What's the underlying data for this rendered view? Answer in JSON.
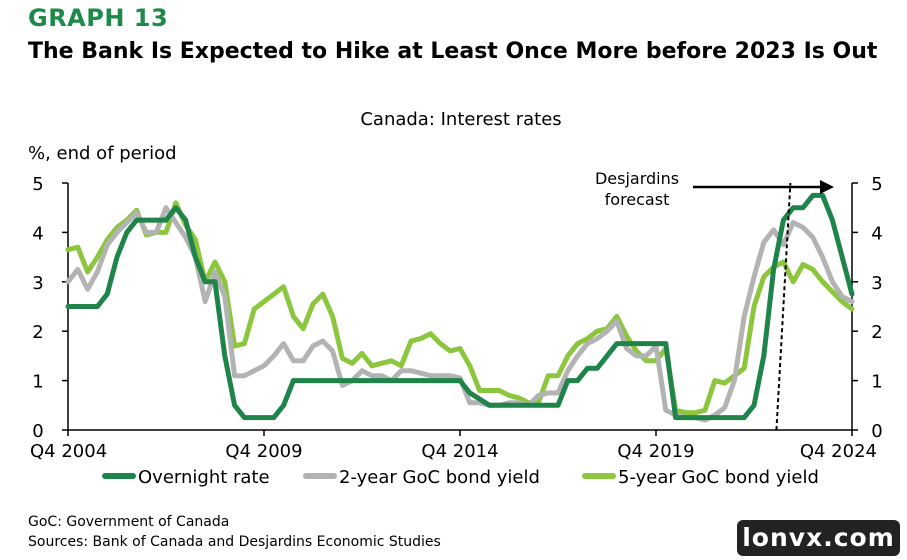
{
  "header": {
    "graph_label": "GRAPH 13",
    "title": "The Bank Is Expected to Hike at Least Once More before 2023 Is Out"
  },
  "footnotes": {
    "line1": "GoC: Government of Canada",
    "line2": "Sources: Bank of Canada and Desjardins Economic Studies"
  },
  "watermark": "lonvx.com",
  "colors": {
    "overnight": "#1e8449",
    "two_year": "#b3b3b3",
    "five_year": "#8cc63f"
  },
  "chart_data": {
    "type": "line",
    "title": "Canada: Interest rates",
    "ylabel": "%, end of period",
    "ylim": [
      0,
      5
    ],
    "yticks": [
      "0",
      "1",
      "2",
      "3",
      "4",
      "5"
    ],
    "xlim": [
      2004.75,
      2024.75
    ],
    "xticks": [
      {
        "x": 2004.75,
        "label": "Q4 2004"
      },
      {
        "x": 2009.75,
        "label": "Q4 2009"
      },
      {
        "x": 2014.75,
        "label": "Q4 2014"
      },
      {
        "x": 2019.75,
        "label": "Q4 2019"
      },
      {
        "x": 2024.75,
        "label": "Q4 2024"
      }
    ],
    "annotation": {
      "text_line1": "Desjardins",
      "text_line2": "forecast",
      "x": 2023.0
    },
    "series": [
      {
        "name": "Overnight rate",
        "key": "overnight",
        "points": [
          [
            2004.75,
            2.5
          ],
          [
            2005.25,
            2.5
          ],
          [
            2005.5,
            2.5
          ],
          [
            2005.75,
            2.75
          ],
          [
            2006.0,
            3.5
          ],
          [
            2006.25,
            4.0
          ],
          [
            2006.5,
            4.25
          ],
          [
            2006.75,
            4.25
          ],
          [
            2007.0,
            4.25
          ],
          [
            2007.25,
            4.25
          ],
          [
            2007.5,
            4.5
          ],
          [
            2007.75,
            4.25
          ],
          [
            2008.0,
            3.5
          ],
          [
            2008.25,
            3.0
          ],
          [
            2008.5,
            3.0
          ],
          [
            2008.75,
            1.5
          ],
          [
            2009.0,
            0.5
          ],
          [
            2009.25,
            0.25
          ],
          [
            2009.5,
            0.25
          ],
          [
            2009.75,
            0.25
          ],
          [
            2010.0,
            0.25
          ],
          [
            2010.25,
            0.5
          ],
          [
            2010.5,
            1.0
          ],
          [
            2010.75,
            1.0
          ],
          [
            2014.75,
            1.0
          ],
          [
            2015.0,
            0.75
          ],
          [
            2015.5,
            0.5
          ],
          [
            2016.0,
            0.5
          ],
          [
            2017.25,
            0.5
          ],
          [
            2017.5,
            1.0
          ],
          [
            2017.75,
            1.0
          ],
          [
            2018.0,
            1.25
          ],
          [
            2018.25,
            1.25
          ],
          [
            2018.5,
            1.5
          ],
          [
            2018.75,
            1.75
          ],
          [
            2020.0,
            1.75
          ],
          [
            2020.25,
            0.25
          ],
          [
            2022.0,
            0.25
          ],
          [
            2022.25,
            0.5
          ],
          [
            2022.5,
            1.5
          ],
          [
            2022.75,
            3.25
          ],
          [
            2023.0,
            4.25
          ],
          [
            2023.25,
            4.5
          ],
          [
            2023.5,
            4.5
          ],
          [
            2023.75,
            4.75
          ],
          [
            2024.0,
            4.75
          ],
          [
            2024.25,
            4.25
          ],
          [
            2024.5,
            3.5
          ],
          [
            2024.75,
            2.75
          ]
        ]
      },
      {
        "name": "2-year GoC bond yield",
        "key": "two_year",
        "points": [
          [
            2004.75,
            3.0
          ],
          [
            2005.0,
            3.25
          ],
          [
            2005.25,
            2.85
          ],
          [
            2005.5,
            3.2
          ],
          [
            2005.75,
            3.75
          ],
          [
            2006.0,
            4.0
          ],
          [
            2006.25,
            4.2
          ],
          [
            2006.5,
            4.4
          ],
          [
            2006.75,
            4.0
          ],
          [
            2007.0,
            4.0
          ],
          [
            2007.25,
            4.5
          ],
          [
            2007.5,
            4.2
          ],
          [
            2007.75,
            3.9
          ],
          [
            2008.0,
            3.5
          ],
          [
            2008.25,
            2.6
          ],
          [
            2008.5,
            3.2
          ],
          [
            2008.75,
            2.7
          ],
          [
            2009.0,
            1.1
          ],
          [
            2009.25,
            1.1
          ],
          [
            2009.5,
            1.2
          ],
          [
            2009.75,
            1.3
          ],
          [
            2010.0,
            1.5
          ],
          [
            2010.25,
            1.75
          ],
          [
            2010.5,
            1.4
          ],
          [
            2010.75,
            1.4
          ],
          [
            2011.0,
            1.7
          ],
          [
            2011.25,
            1.8
          ],
          [
            2011.5,
            1.6
          ],
          [
            2011.75,
            0.9
          ],
          [
            2012.0,
            1.0
          ],
          [
            2012.25,
            1.2
          ],
          [
            2012.5,
            1.1
          ],
          [
            2012.75,
            1.1
          ],
          [
            2013.0,
            1.0
          ],
          [
            2013.25,
            1.2
          ],
          [
            2013.5,
            1.2
          ],
          [
            2013.75,
            1.15
          ],
          [
            2014.0,
            1.1
          ],
          [
            2014.25,
            1.1
          ],
          [
            2014.5,
            1.1
          ],
          [
            2014.75,
            1.05
          ],
          [
            2015.0,
            0.55
          ],
          [
            2015.25,
            0.55
          ],
          [
            2015.5,
            0.5
          ],
          [
            2015.75,
            0.5
          ],
          [
            2016.0,
            0.55
          ],
          [
            2016.25,
            0.55
          ],
          [
            2016.5,
            0.5
          ],
          [
            2016.75,
            0.7
          ],
          [
            2017.0,
            0.75
          ],
          [
            2017.25,
            0.75
          ],
          [
            2017.5,
            1.2
          ],
          [
            2017.75,
            1.5
          ],
          [
            2018.0,
            1.75
          ],
          [
            2018.25,
            1.85
          ],
          [
            2018.5,
            2.0
          ],
          [
            2018.75,
            2.2
          ],
          [
            2019.0,
            1.65
          ],
          [
            2019.25,
            1.5
          ],
          [
            2019.5,
            1.5
          ],
          [
            2019.75,
            1.7
          ],
          [
            2020.0,
            0.4
          ],
          [
            2020.25,
            0.3
          ],
          [
            2020.5,
            0.25
          ],
          [
            2020.75,
            0.25
          ],
          [
            2021.0,
            0.2
          ],
          [
            2021.25,
            0.3
          ],
          [
            2021.5,
            0.45
          ],
          [
            2021.75,
            1.0
          ],
          [
            2022.0,
            2.3
          ],
          [
            2022.25,
            3.1
          ],
          [
            2022.5,
            3.8
          ],
          [
            2022.75,
            4.05
          ],
          [
            2023.0,
            3.75
          ],
          [
            2023.25,
            4.2
          ],
          [
            2023.5,
            4.1
          ],
          [
            2023.75,
            3.9
          ],
          [
            2024.0,
            3.5
          ],
          [
            2024.25,
            3.0
          ],
          [
            2024.5,
            2.7
          ],
          [
            2024.75,
            2.6
          ]
        ]
      },
      {
        "name": "5-year GoC bond yield",
        "key": "five_year",
        "points": [
          [
            2004.75,
            3.65
          ],
          [
            2005.0,
            3.7
          ],
          [
            2005.25,
            3.2
          ],
          [
            2005.5,
            3.5
          ],
          [
            2005.75,
            3.85
          ],
          [
            2006.0,
            4.1
          ],
          [
            2006.25,
            4.25
          ],
          [
            2006.5,
            4.45
          ],
          [
            2006.75,
            3.95
          ],
          [
            2007.0,
            4.0
          ],
          [
            2007.25,
            4.0
          ],
          [
            2007.5,
            4.6
          ],
          [
            2007.75,
            4.15
          ],
          [
            2008.0,
            3.85
          ],
          [
            2008.25,
            3.0
          ],
          [
            2008.5,
            3.4
          ],
          [
            2008.75,
            3.0
          ],
          [
            2009.0,
            1.7
          ],
          [
            2009.25,
            1.75
          ],
          [
            2009.5,
            2.45
          ],
          [
            2009.75,
            2.6
          ],
          [
            2010.0,
            2.75
          ],
          [
            2010.25,
            2.9
          ],
          [
            2010.5,
            2.3
          ],
          [
            2010.75,
            2.05
          ],
          [
            2011.0,
            2.55
          ],
          [
            2011.25,
            2.75
          ],
          [
            2011.5,
            2.3
          ],
          [
            2011.75,
            1.45
          ],
          [
            2012.0,
            1.35
          ],
          [
            2012.25,
            1.55
          ],
          [
            2012.5,
            1.3
          ],
          [
            2012.75,
            1.35
          ],
          [
            2013.0,
            1.4
          ],
          [
            2013.25,
            1.3
          ],
          [
            2013.5,
            1.8
          ],
          [
            2013.75,
            1.85
          ],
          [
            2014.0,
            1.95
          ],
          [
            2014.25,
            1.75
          ],
          [
            2014.5,
            1.6
          ],
          [
            2014.75,
            1.65
          ],
          [
            2015.0,
            1.3
          ],
          [
            2015.25,
            0.8
          ],
          [
            2015.5,
            0.8
          ],
          [
            2015.75,
            0.8
          ],
          [
            2016.0,
            0.7
          ],
          [
            2016.25,
            0.65
          ],
          [
            2016.5,
            0.55
          ],
          [
            2016.75,
            0.55
          ],
          [
            2017.0,
            1.1
          ],
          [
            2017.25,
            1.1
          ],
          [
            2017.5,
            1.5
          ],
          [
            2017.75,
            1.75
          ],
          [
            2018.0,
            1.85
          ],
          [
            2018.25,
            2.0
          ],
          [
            2018.5,
            2.05
          ],
          [
            2018.75,
            2.3
          ],
          [
            2019.0,
            1.9
          ],
          [
            2019.25,
            1.6
          ],
          [
            2019.5,
            1.4
          ],
          [
            2019.75,
            1.4
          ],
          [
            2020.0,
            1.65
          ],
          [
            2020.25,
            0.4
          ],
          [
            2020.5,
            0.35
          ],
          [
            2020.75,
            0.35
          ],
          [
            2021.0,
            0.4
          ],
          [
            2021.25,
            1.0
          ],
          [
            2021.5,
            0.95
          ],
          [
            2021.75,
            1.1
          ],
          [
            2022.0,
            1.25
          ],
          [
            2022.25,
            2.5
          ],
          [
            2022.5,
            3.1
          ],
          [
            2022.75,
            3.3
          ],
          [
            2023.0,
            3.4
          ],
          [
            2023.25,
            3.0
          ],
          [
            2023.5,
            3.35
          ],
          [
            2023.75,
            3.25
          ],
          [
            2024.0,
            3.0
          ],
          [
            2024.25,
            2.8
          ],
          [
            2024.5,
            2.6
          ],
          [
            2024.75,
            2.45
          ]
        ]
      }
    ]
  }
}
